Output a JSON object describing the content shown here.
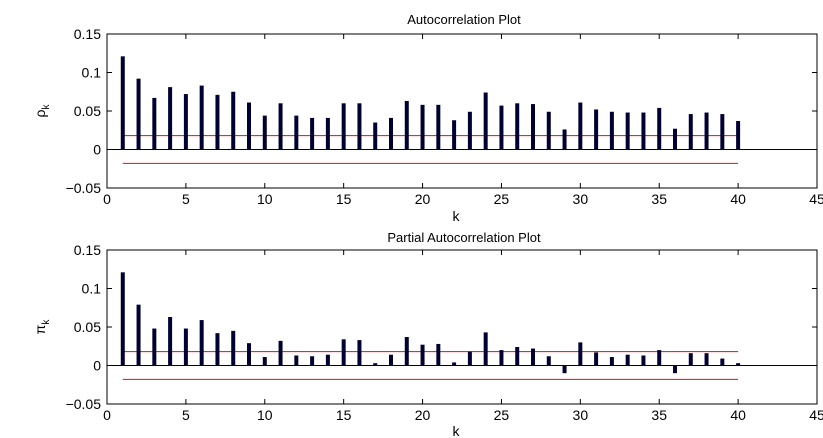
{
  "chart_data": [
    {
      "type": "bar",
      "title": "Autocorrelation Plot",
      "xlabel": "k",
      "ylabel_main": "ρ",
      "ylabel_sub": "k",
      "xlim": [
        0,
        45
      ],
      "ylim": [
        -0.05,
        0.15
      ],
      "xticks": [
        0,
        5,
        10,
        15,
        20,
        25,
        30,
        35,
        40,
        45
      ],
      "yticks": [
        -0.05,
        0,
        0.05,
        0.1,
        0.15
      ],
      "xtick_labels": [
        "0",
        "5",
        "10",
        "15",
        "20",
        "25",
        "30",
        "35",
        "40",
        "45"
      ],
      "ytick_labels": [
        "−0.05",
        "0",
        "0.05",
        "0.1",
        "0.15"
      ],
      "confidence_bounds": [
        0.018,
        -0.018
      ],
      "confidence_range": [
        1,
        40
      ],
      "bar_color": "#000033",
      "x": [
        1,
        2,
        3,
        4,
        5,
        6,
        7,
        8,
        9,
        10,
        11,
        12,
        13,
        14,
        15,
        16,
        17,
        18,
        19,
        20,
        21,
        22,
        23,
        24,
        25,
        26,
        27,
        28,
        29,
        30,
        31,
        32,
        33,
        34,
        35,
        36,
        37,
        38,
        39,
        40
      ],
      "values": [
        0.121,
        0.092,
        0.067,
        0.081,
        0.072,
        0.083,
        0.071,
        0.075,
        0.061,
        0.044,
        0.06,
        0.044,
        0.041,
        0.041,
        0.06,
        0.06,
        0.035,
        0.041,
        0.063,
        0.058,
        0.058,
        0.038,
        0.049,
        0.074,
        0.057,
        0.06,
        0.059,
        0.049,
        0.026,
        0.061,
        0.052,
        0.049,
        0.048,
        0.048,
        0.054,
        0.027,
        0.046,
        0.048,
        0.046,
        0.037
      ]
    },
    {
      "type": "bar",
      "title": "Partial Autocorrelation Plot",
      "xlabel": "k",
      "ylabel_main": "π",
      "ylabel_sub": "k",
      "xlim": [
        0,
        45
      ],
      "ylim": [
        -0.05,
        0.15
      ],
      "xticks": [
        0,
        5,
        10,
        15,
        20,
        25,
        30,
        35,
        40,
        45
      ],
      "yticks": [
        -0.05,
        0,
        0.05,
        0.1,
        0.15
      ],
      "xtick_labels": [
        "0",
        "5",
        "10",
        "15",
        "20",
        "25",
        "30",
        "35",
        "40",
        "45"
      ],
      "ytick_labels": [
        "−0.05",
        "0",
        "0.05",
        "0.1",
        "0.15"
      ],
      "confidence_bounds": [
        0.018,
        -0.018
      ],
      "confidence_range": [
        1,
        40
      ],
      "bar_color": "#000033",
      "x": [
        1,
        2,
        3,
        4,
        5,
        6,
        7,
        8,
        9,
        10,
        11,
        12,
        13,
        14,
        15,
        16,
        17,
        18,
        19,
        20,
        21,
        22,
        23,
        24,
        25,
        26,
        27,
        28,
        29,
        30,
        31,
        32,
        33,
        34,
        35,
        36,
        37,
        38,
        39,
        40
      ],
      "values": [
        0.121,
        0.079,
        0.048,
        0.063,
        0.048,
        0.059,
        0.042,
        0.045,
        0.029,
        0.011,
        0.032,
        0.013,
        0.012,
        0.014,
        0.034,
        0.033,
        0.003,
        0.014,
        0.037,
        0.027,
        0.028,
        0.004,
        0.018,
        0.043,
        0.02,
        0.024,
        0.022,
        0.012,
        -0.01,
        0.03,
        0.017,
        0.011,
        0.014,
        0.013,
        0.02,
        -0.01,
        0.016,
        0.016,
        0.009,
        0.003
      ]
    }
  ]
}
